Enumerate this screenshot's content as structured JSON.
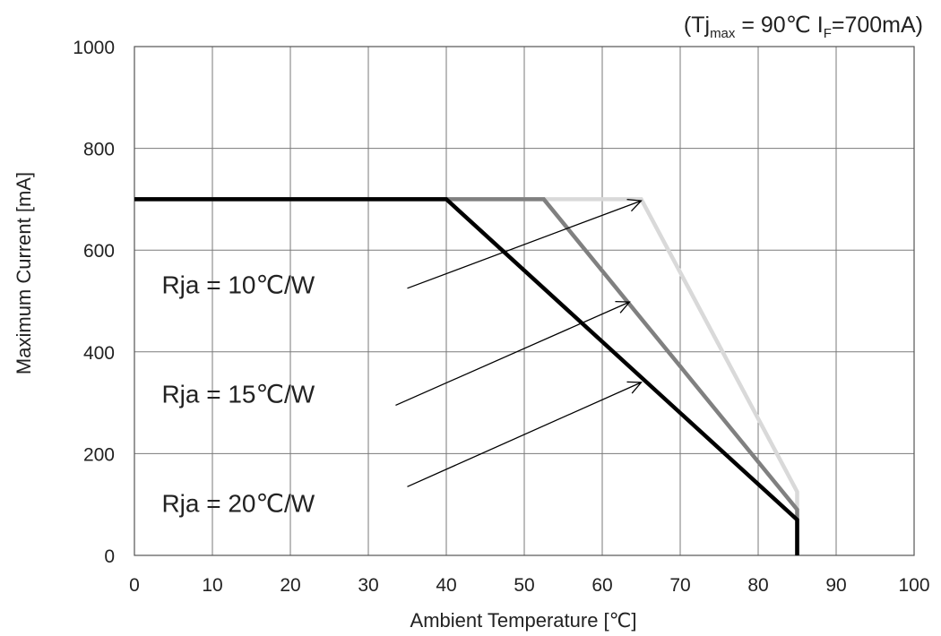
{
  "chart_data": {
    "type": "line",
    "title": "",
    "conditions": {
      "open": "(",
      "tj_symbol": "Tj",
      "tj_subscript": "max",
      "tj_value": " = 90℃ ",
      "if_symbol": "I",
      "if_subscript": "F",
      "if_value": "=700mA)"
    },
    "xlabel": "Ambient Temperature [℃]",
    "ylabel": "Maximum Current [mA]",
    "xlim": [
      0,
      100
    ],
    "ylim": [
      0,
      1000
    ],
    "x_ticks": [
      0,
      10,
      20,
      30,
      40,
      50,
      60,
      70,
      80,
      90,
      100
    ],
    "y_ticks": [
      0,
      200,
      400,
      600,
      800,
      1000
    ],
    "grid": true,
    "series": [
      {
        "name": "Rja = 10℃/W",
        "color": "#d9d9d9",
        "points": [
          [
            0,
            700
          ],
          [
            65,
            700
          ],
          [
            85,
            125
          ],
          [
            85,
            0
          ]
        ]
      },
      {
        "name": "Rja = 15℃/W",
        "color": "#808080",
        "points": [
          [
            0,
            700
          ],
          [
            52.5,
            700
          ],
          [
            85,
            90
          ],
          [
            85,
            0
          ]
        ]
      },
      {
        "name": "Rja = 20℃/W",
        "color": "#000000",
        "points": [
          [
            0,
            700
          ],
          [
            40,
            700
          ],
          [
            85,
            70
          ],
          [
            85,
            0
          ]
        ]
      }
    ],
    "annotations": [
      {
        "text": "Rja = 10℃/W",
        "label_at": [
          3.5,
          515
        ],
        "arrow_from": [
          35,
          525
        ],
        "arrow_to": [
          65,
          697
        ]
      },
      {
        "text": "Rja = 15℃/W",
        "label_at": [
          3.5,
          300
        ],
        "arrow_from": [
          33.5,
          295
        ],
        "arrow_to": [
          63.5,
          498
        ]
      },
      {
        "text": "Rja = 20℃/W",
        "label_at": [
          3.5,
          85
        ],
        "arrow_from": [
          35,
          135
        ],
        "arrow_to": [
          65,
          340
        ]
      }
    ]
  }
}
